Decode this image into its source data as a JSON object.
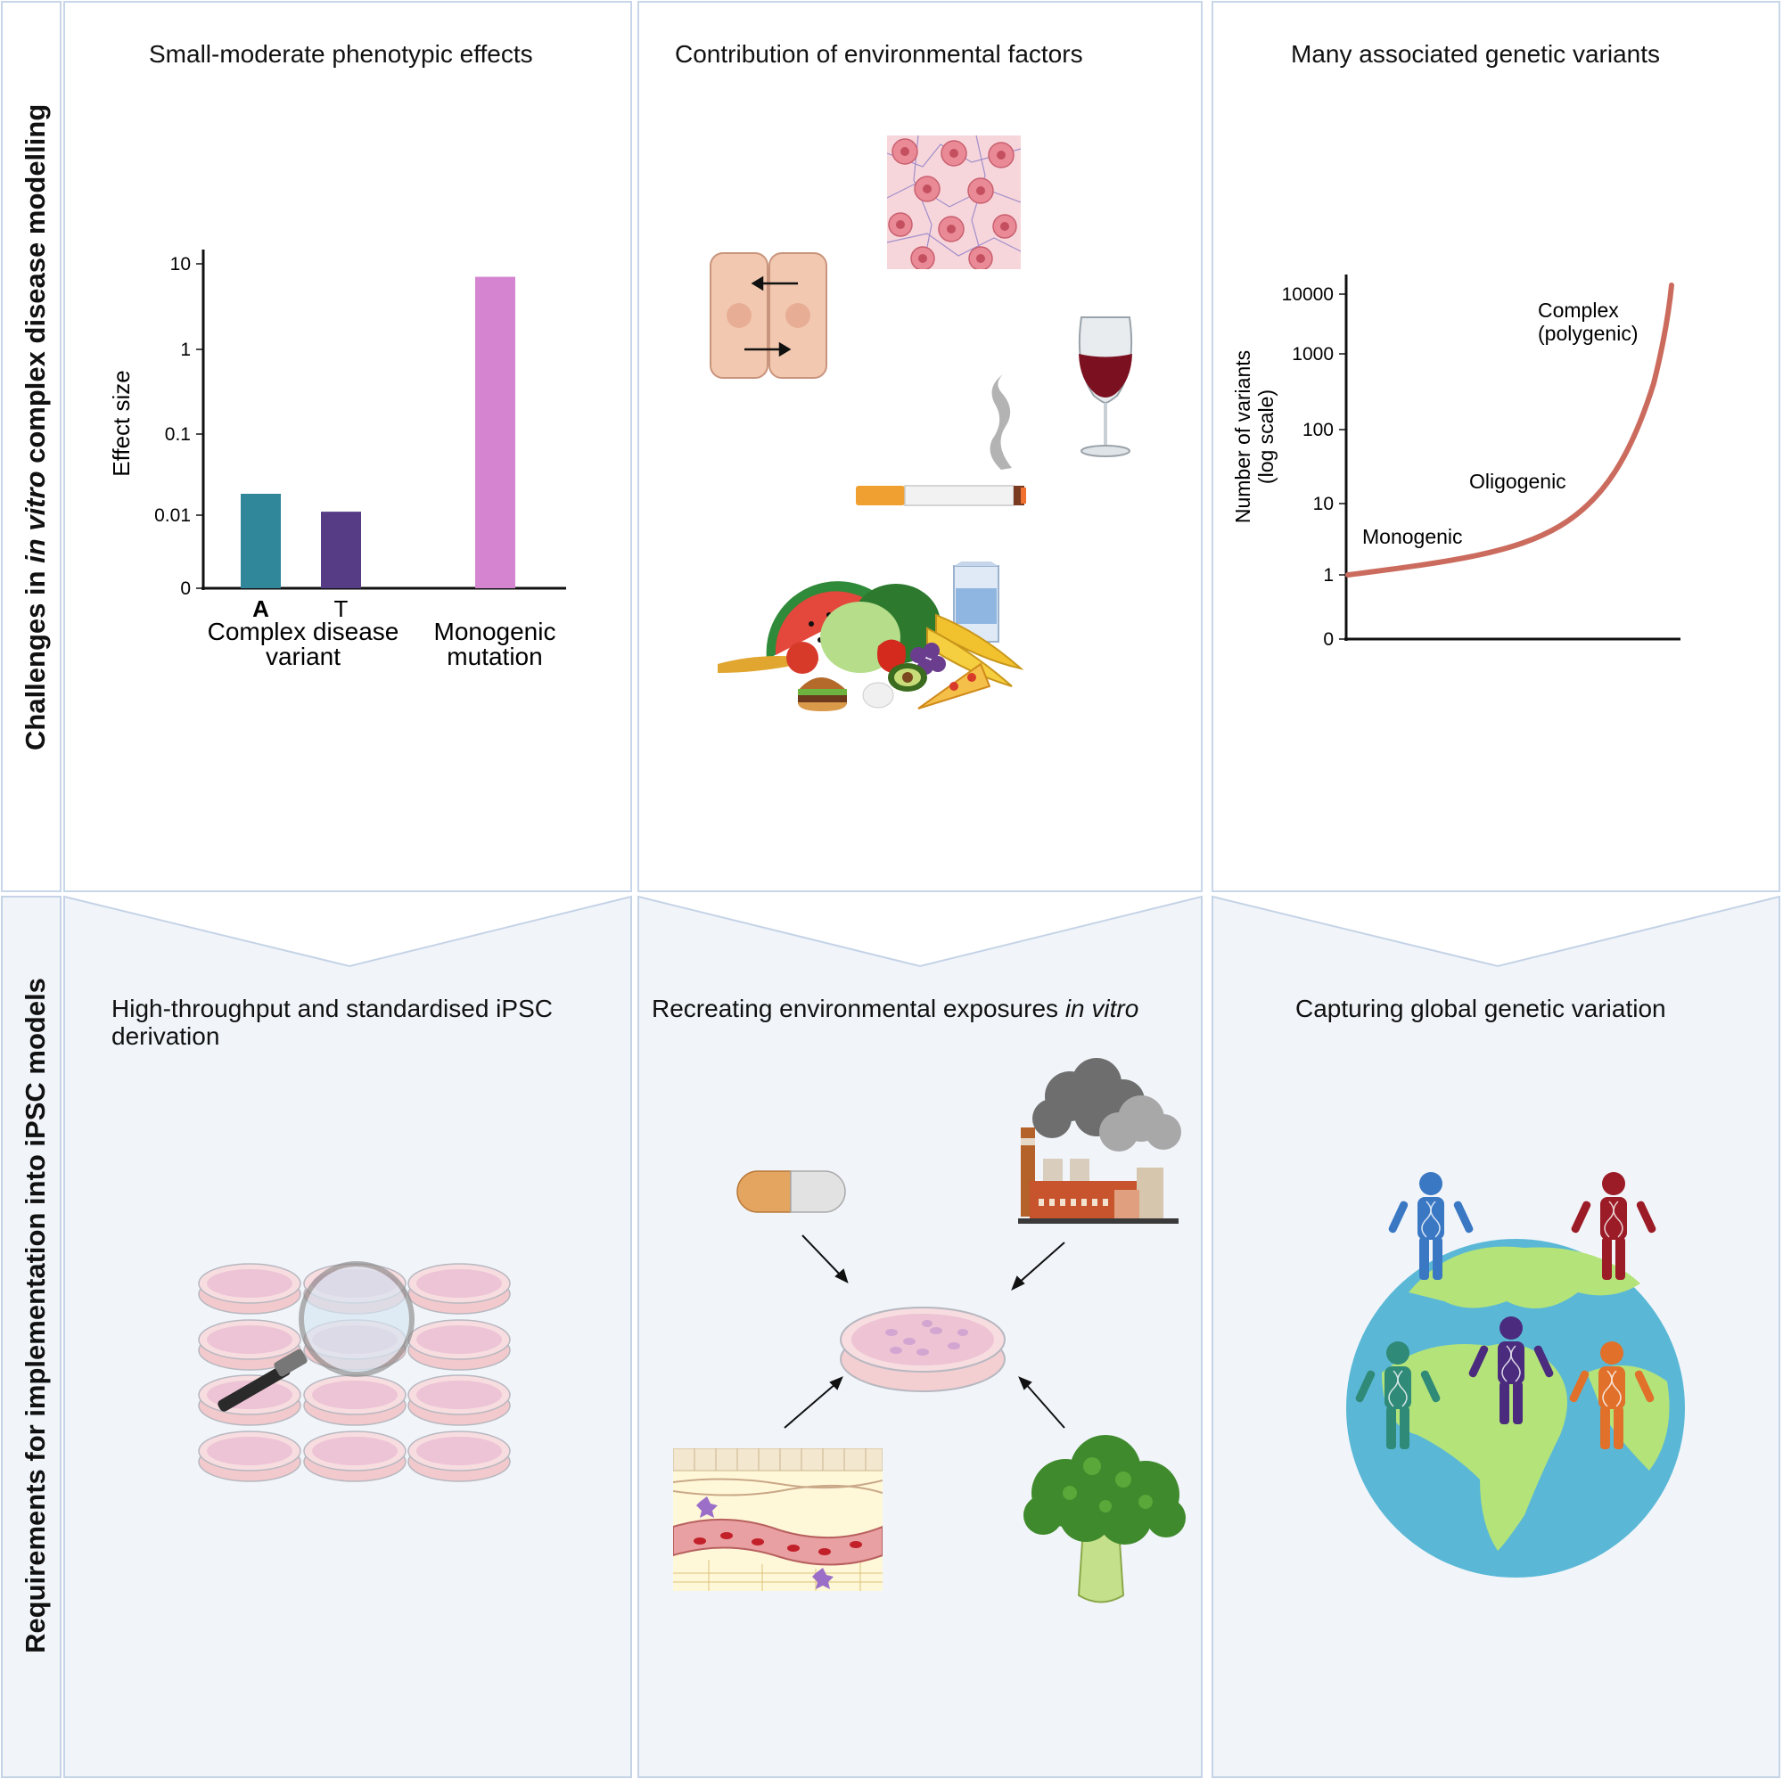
{
  "row_labels": {
    "top_pre": "Challenges in ",
    "top_em": "in vitro",
    "top_post": " complex disease modelling",
    "bottom": "Requirements for implementation into iPSC models"
  },
  "panels": {
    "effects_title": "Small-moderate phenotypic effects",
    "environment_title": "Contribution of environmental factors",
    "variants_title": "Many associated genetic variants",
    "derivation_title": "High-throughput and standardised iPSC derivation",
    "exposures_title_pre": "Recreating environmental exposures ",
    "exposures_title_em": "in vitro",
    "global_title": "Capturing global genetic variation"
  },
  "chart_data": [
    {
      "type": "bar",
      "ylabel": "Effect size",
      "yticks": [
        "0",
        "0.01",
        "0.1",
        "1",
        "10"
      ],
      "scale": "log",
      "categories": [
        "A",
        "T",
        "Monogenic mutation"
      ],
      "values": [
        0.018,
        0.011,
        7.0
      ],
      "colors": [
        "#31879a",
        "#553c85",
        "#d585d0"
      ],
      "group_labels": [
        "Complex disease variant",
        "Monogenic mutation"
      ],
      "group_labels_lines": [
        [
          "Complex disease",
          "variant"
        ],
        [
          "Monogenic",
          "mutation"
        ]
      ]
    },
    {
      "type": "line",
      "ylabel_lines": [
        "Number of variants",
        "(log scale)"
      ],
      "yticks": [
        "0",
        "1",
        "10",
        "100",
        "1000",
        "10000"
      ],
      "scale": "log",
      "annotations": [
        "Monogenic",
        "Oligogenic",
        "Complex",
        "(polygenic)"
      ],
      "line_color": "#cb6b5e"
    }
  ],
  "colors": {
    "top_panel_bg": "#ffffff",
    "bottom_panel_bg": "#f1f5fa",
    "panel_border": "#c5d3e6"
  }
}
